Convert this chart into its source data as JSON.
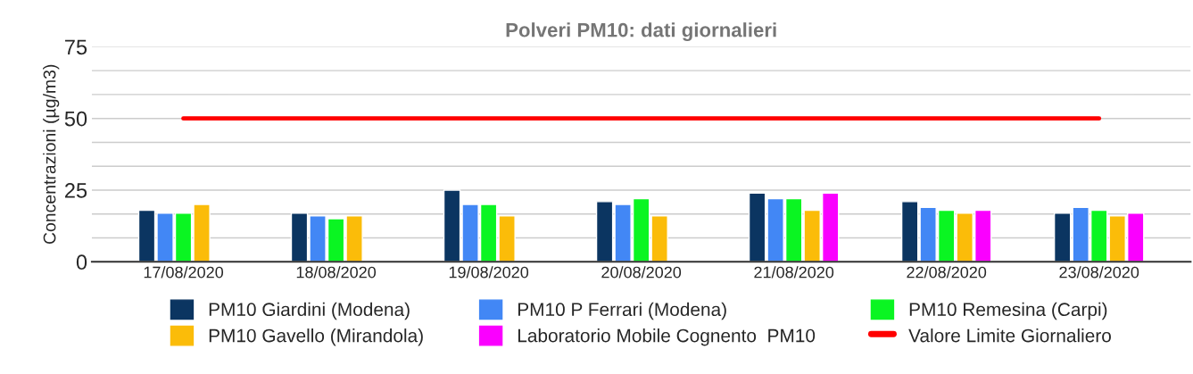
{
  "chart_data": {
    "type": "bar",
    "title": "Polveri PM10: dati giornalieri",
    "ylabel": "Concentrazioni (µg/m3)",
    "categories": [
      "17/08/2020",
      "18/08/2020",
      "19/08/2020",
      "20/08/2020",
      "21/08/2020",
      "22/08/2020",
      "23/08/2020"
    ],
    "series": [
      {
        "name": "PM10 Giardini (Modena)",
        "color": "#0b3561",
        "values": [
          18,
          17,
          25,
          21,
          24,
          21,
          17
        ]
      },
      {
        "name": "PM10 P Ferrari (Modena)",
        "color": "#4287f5",
        "values": [
          17,
          16,
          20,
          20,
          22,
          19,
          19
        ]
      },
      {
        "name": "PM10 Remesina (Carpi)",
        "color": "#0af522",
        "values": [
          17,
          15,
          20,
          22,
          22,
          18,
          18
        ]
      },
      {
        "name": "PM10 Gavello (Mirandola)",
        "color": "#fbbc09",
        "values": [
          20,
          16,
          16,
          16,
          18,
          17,
          16
        ]
      },
      {
        "name": "Laboratorio Mobile Cognento  PM10",
        "color": "#fa00ff",
        "values": [
          null,
          null,
          null,
          null,
          24,
          18,
          17
        ]
      },
      {
        "name": "Valore Limite Giornaliero",
        "color": "#ff0000",
        "type": "line",
        "values": [
          50,
          50,
          50,
          50,
          50,
          50,
          50
        ]
      }
    ],
    "ylim": [
      0,
      75
    ],
    "yticks": [
      0,
      {
        "value": 8.333,
        "label": null
      },
      {
        "value": 16.667,
        "label": null
      },
      25,
      {
        "value": 33.333,
        "label": null
      },
      {
        "value": 41.667,
        "label": null
      },
      50,
      {
        "value": 58.333,
        "label": null
      },
      {
        "value": 66.667,
        "label": null
      },
      75
    ],
    "grid": "y",
    "legend": "bottom"
  }
}
